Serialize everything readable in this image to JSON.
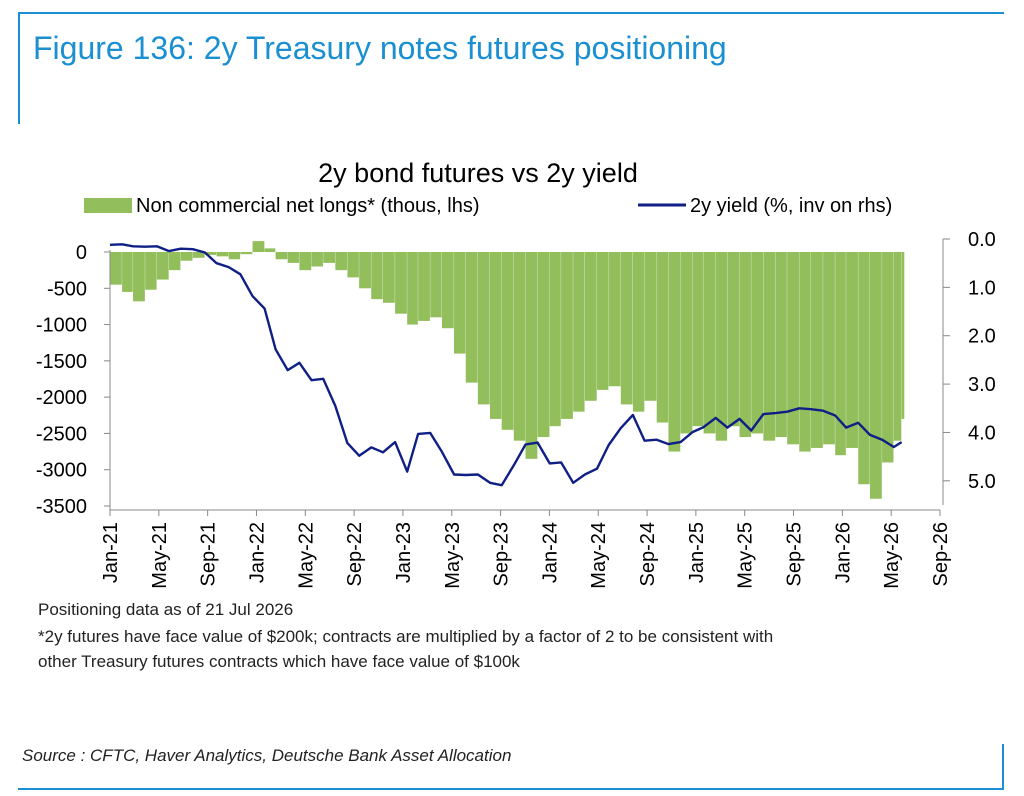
{
  "figure": {
    "title": "Figure 136: 2y Treasury notes futures positioning",
    "note_1": "Positioning data as of 21 Jul 2026",
    "note_2": "*2y futures have face value of $200k; contracts are multiplied by a factor of 2 to be consistent with",
    "note_3": "other Treasury futures contracts which have face value of $100k",
    "source": "Source : CFTC, Haver Analytics, Deutsche Bank Asset Allocation"
  },
  "colors": {
    "accent": "#1a8fd1",
    "bars": "#92be5b",
    "line": "#0f1f85",
    "axis": "#888888"
  },
  "chart_data": {
    "type": "bar",
    "title": "2y bond futures vs 2y yield",
    "legend_position": "top",
    "grid": false,
    "x_tick_labels": [
      "Jan-21",
      "May-21",
      "Sep-21",
      "Jan-22",
      "May-22",
      "Sep-22",
      "Jan-23",
      "May-23",
      "Sep-23",
      "Jan-24",
      "May-24",
      "Sep-24",
      "Jan-25",
      "May-25",
      "Sep-25",
      "Jan-26",
      "May-26",
      "Sep-26"
    ],
    "x_range": [
      "2021-01-01",
      "2026-09-01"
    ],
    "y_left": {
      "ticks": [
        0,
        -500,
        -1000,
        -1500,
        -2000,
        -2500,
        -3000,
        -3500
      ],
      "range": [
        -3500,
        0
      ]
    },
    "y_right": {
      "ticks": [
        "0.0",
        "1.0",
        "2.0",
        "3.0",
        "4.0",
        "5.0"
      ],
      "range": [
        0,
        5.5
      ],
      "inverted": true
    },
    "series": [
      {
        "name": "Non commercial net longs* (thous, lhs)",
        "kind": "bar",
        "axis": "left",
        "points": [
          [
            "2021-01-01",
            -450
          ],
          [
            "2021-02-01",
            -550
          ],
          [
            "2021-03-01",
            -680
          ],
          [
            "2021-04-01",
            -520
          ],
          [
            "2021-05-01",
            -380
          ],
          [
            "2021-06-01",
            -250
          ],
          [
            "2021-07-01",
            -120
          ],
          [
            "2021-08-01",
            -80
          ],
          [
            "2021-09-01",
            -40
          ],
          [
            "2021-10-01",
            -60
          ],
          [
            "2021-11-01",
            -100
          ],
          [
            "2021-12-01",
            -30
          ],
          [
            "2022-01-01",
            150
          ],
          [
            "2022-02-01",
            50
          ],
          [
            "2022-03-01",
            -100
          ],
          [
            "2022-04-01",
            -150
          ],
          [
            "2022-05-01",
            -250
          ],
          [
            "2022-06-01",
            -200
          ],
          [
            "2022-07-01",
            -150
          ],
          [
            "2022-08-01",
            -250
          ],
          [
            "2022-09-01",
            -350
          ],
          [
            "2022-10-01",
            -500
          ],
          [
            "2022-11-01",
            -650
          ],
          [
            "2022-12-01",
            -700
          ],
          [
            "2023-01-01",
            -850
          ],
          [
            "2023-02-01",
            -1000
          ],
          [
            "2023-03-01",
            -950
          ],
          [
            "2023-04-01",
            -900
          ],
          [
            "2023-05-01",
            -1050
          ],
          [
            "2023-06-01",
            -1400
          ],
          [
            "2023-07-01",
            -1800
          ],
          [
            "2023-08-01",
            -2100
          ],
          [
            "2023-09-01",
            -2300
          ],
          [
            "2023-10-01",
            -2450
          ],
          [
            "2023-11-01",
            -2600
          ],
          [
            "2023-12-01",
            -2850
          ],
          [
            "2024-01-01",
            -2550
          ],
          [
            "2024-02-01",
            -2400
          ],
          [
            "2024-03-01",
            -2300
          ],
          [
            "2024-04-01",
            -2200
          ],
          [
            "2024-05-01",
            -2050
          ],
          [
            "2024-06-01",
            -1900
          ],
          [
            "2024-07-01",
            -1850
          ],
          [
            "2024-08-01",
            -2100
          ],
          [
            "2024-09-01",
            -2200
          ],
          [
            "2024-10-01",
            -2050
          ],
          [
            "2024-11-01",
            -2350
          ],
          [
            "2024-12-01",
            -2750
          ],
          [
            "2025-01-01",
            -2500
          ],
          [
            "2025-02-01",
            -2400
          ],
          [
            "2025-03-01",
            -2500
          ],
          [
            "2025-04-01",
            -2600
          ],
          [
            "2025-05-01",
            -2400
          ],
          [
            "2025-06-01",
            -2550
          ],
          [
            "2025-07-01",
            -2500
          ],
          [
            "2025-08-01",
            -2600
          ],
          [
            "2025-09-01",
            -2550
          ],
          [
            "2025-10-01",
            -2650
          ],
          [
            "2025-11-01",
            -2750
          ],
          [
            "2025-12-01",
            -2700
          ],
          [
            "2026-01-01",
            -2650
          ],
          [
            "2026-02-01",
            -2800
          ],
          [
            "2026-03-01",
            -2700
          ],
          [
            "2026-04-01",
            -3200
          ],
          [
            "2026-05-01",
            -3400
          ],
          [
            "2026-06-01",
            -2900
          ],
          [
            "2026-07-01",
            -2600
          ],
          [
            "2026-07-21",
            -2300
          ]
        ]
      },
      {
        "name": "2y yield (%, inv on rhs)",
        "kind": "line",
        "axis": "right",
        "points": [
          [
            "2021-01-01",
            0.12
          ],
          [
            "2021-02-01",
            0.11
          ],
          [
            "2021-03-01",
            0.15
          ],
          [
            "2021-04-01",
            0.16
          ],
          [
            "2021-05-01",
            0.15
          ],
          [
            "2021-06-01",
            0.25
          ],
          [
            "2021-07-01",
            0.2
          ],
          [
            "2021-08-01",
            0.21
          ],
          [
            "2021-09-01",
            0.28
          ],
          [
            "2021-10-01",
            0.5
          ],
          [
            "2021-11-01",
            0.58
          ],
          [
            "2021-12-01",
            0.73
          ],
          [
            "2022-01-01",
            1.18
          ],
          [
            "2022-02-01",
            1.44
          ],
          [
            "2022-03-01",
            2.28
          ],
          [
            "2022-04-01",
            2.71
          ],
          [
            "2022-05-01",
            2.56
          ],
          [
            "2022-06-01",
            2.92
          ],
          [
            "2022-07-01",
            2.89
          ],
          [
            "2022-08-01",
            3.45
          ],
          [
            "2022-09-01",
            4.22
          ],
          [
            "2022-10-01",
            4.48
          ],
          [
            "2022-11-01",
            4.31
          ],
          [
            "2022-12-01",
            4.41
          ],
          [
            "2023-01-01",
            4.2
          ],
          [
            "2023-02-01",
            4.81
          ],
          [
            "2023-03-01",
            4.03
          ],
          [
            "2023-04-01",
            4.01
          ],
          [
            "2023-05-01",
            4.4
          ],
          [
            "2023-06-01",
            4.87
          ],
          [
            "2023-07-01",
            4.88
          ],
          [
            "2023-08-01",
            4.87
          ],
          [
            "2023-09-01",
            5.04
          ],
          [
            "2023-10-01",
            5.09
          ],
          [
            "2023-11-01",
            4.68
          ],
          [
            "2023-12-01",
            4.25
          ],
          [
            "2024-01-01",
            4.21
          ],
          [
            "2024-02-01",
            4.64
          ],
          [
            "2024-03-01",
            4.62
          ],
          [
            "2024-04-01",
            5.04
          ],
          [
            "2024-05-01",
            4.87
          ],
          [
            "2024-06-01",
            4.75
          ],
          [
            "2024-07-01",
            4.26
          ],
          [
            "2024-08-01",
            3.91
          ],
          [
            "2024-09-01",
            3.64
          ],
          [
            "2024-10-01",
            4.17
          ],
          [
            "2024-11-01",
            4.15
          ],
          [
            "2024-12-01",
            4.24
          ],
          [
            "2025-01-01",
            4.2
          ],
          [
            "2025-02-01",
            3.99
          ],
          [
            "2025-03-01",
            3.89
          ],
          [
            "2025-04-01",
            3.7
          ],
          [
            "2025-05-01",
            3.9
          ],
          [
            "2025-06-01",
            3.72
          ],
          [
            "2025-07-01",
            3.96
          ],
          [
            "2025-08-01",
            3.62
          ],
          [
            "2025-09-01",
            3.6
          ],
          [
            "2025-10-01",
            3.57
          ],
          [
            "2025-11-01",
            3.5
          ],
          [
            "2025-12-01",
            3.52
          ],
          [
            "2026-01-01",
            3.55
          ],
          [
            "2026-02-01",
            3.65
          ],
          [
            "2026-03-01",
            3.9
          ],
          [
            "2026-04-01",
            3.8
          ],
          [
            "2026-05-01",
            4.05
          ],
          [
            "2026-06-01",
            4.15
          ],
          [
            "2026-07-01",
            4.3
          ],
          [
            "2026-07-21",
            4.2
          ]
        ]
      }
    ]
  }
}
